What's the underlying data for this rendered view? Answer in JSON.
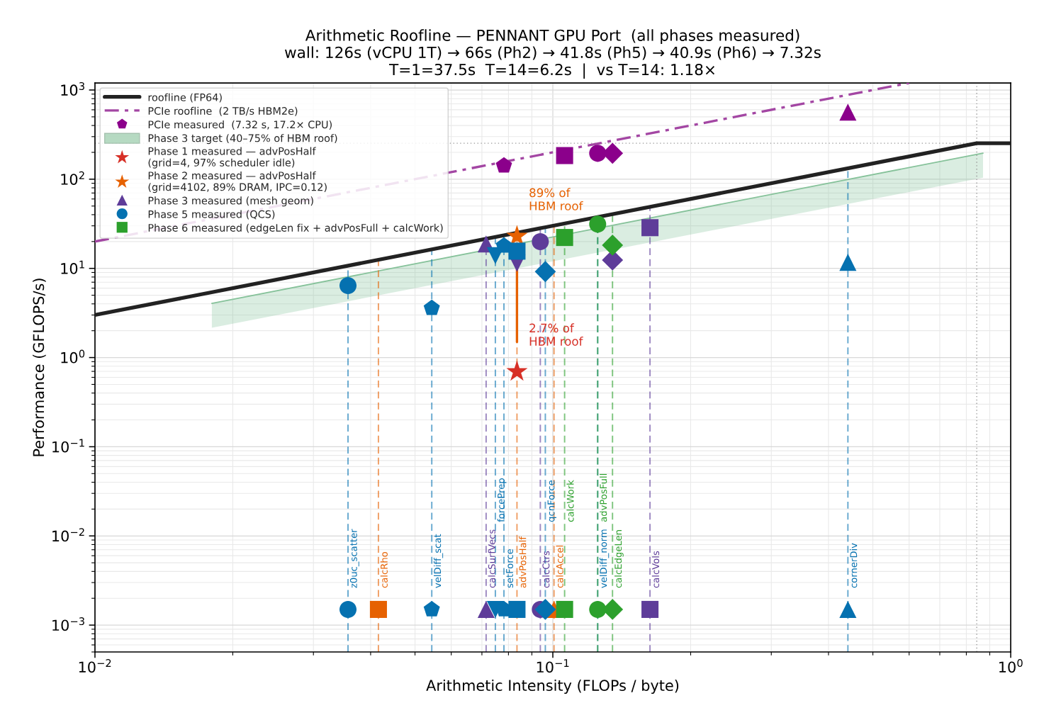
{
  "chart_data": {
    "type": "scatter",
    "title": "Arithmetic Roofline — PENNANT GPU Port  (all phases measured)",
    "subtitle": "wall: 126s (vCPU 1T) → 66s (Ph2) → 41.8s (Ph5) → 40.9s (Ph6) → 7.32s\nT=1=37.5s  T=14=6.2s  |  vs T=14: 1.18×",
    "xlabel": "Arithmetic Intensity (FLOPs / byte)",
    "ylabel": "Performance (GFLOPS/s)",
    "log": "xy",
    "grid": true,
    "legend": "top left",
    "xlim": [
      0.01,
      1
    ],
    "ylim": [
      0.0005,
      1200
    ],
    "xticks": [
      {
        "value": 0.01,
        "label": "10$^{−2}$"
      },
      {
        "value": 0.1,
        "label": "10$^{−1}$"
      },
      {
        "value": 1,
        "label": "10$^{0}$"
      }
    ],
    "yticks": [
      {
        "value": 0.001,
        "label": "10$^{−3}$"
      },
      {
        "value": 0.01,
        "label": "10$^{−2}$"
      },
      {
        "value": 0.1,
        "label": "10$^{−1}$"
      },
      {
        "value": 1,
        "label": "10$^{0}$"
      },
      {
        "value": 10,
        "label": "10$^{1}$"
      },
      {
        "value": 100,
        "label": "10$^{2}$"
      },
      {
        "value": 1000,
        "label": "10$^{3}$"
      }
    ],
    "series": [
      {
        "name": "roofline (FP64)",
        "type": "line",
        "color": "#222222",
        "x": [
          0.01,
          0.843,
          1
        ],
        "values": [
          3,
          253,
          253
        ]
      },
      {
        "name": "PCIe roofline  (2 TB/s HBM2e)",
        "type": "line",
        "line_style": "dashdot",
        "color": "#a346a3",
        "x": [
          0.01,
          0.6
        ],
        "values": [
          20,
          1200
        ]
      },
      {
        "name": "PCIe measured  (7.32 s, 17.2× CPU)",
        "color": "#8b008b",
        "x": [
          0.0782
        ],
        "values": [
          142
        ]
      },
      {
        "marker": "square",
        "color": "#8b008b",
        "x": [
          0.1061
        ],
        "values": [
          184
        ]
      },
      {
        "marker": "circle",
        "color": "#8b008b",
        "x": [
          0.1253
        ],
        "values": [
          195
        ]
      },
      {
        "marker": "diamond",
        "color": "#8b008b",
        "x": [
          0.135
        ],
        "values": [
          195
        ]
      },
      {
        "marker": "triangle",
        "color": "#8b008b",
        "x": [
          0.441
        ],
        "values": [
          564
        ]
      },
      {
        "name": "Phase 3 target (40–75% of HBM roof)",
        "type": "line",
        "color": "#86c29a",
        "x": [
          0.018,
          0.87
        ],
        "values": [
          4.05,
          196
        ],
        "lower": [
          2.16,
          104
        ],
        "upper": [
          4.05,
          196
        ]
      },
      {
        "name": "Phase 1 measured — advPosHalf\n(grid=4, 97% scheduler idle)",
        "marker": "star",
        "color": "#d73027",
        "x": [
          0.0835
        ],
        "values": [
          0.695
        ]
      },
      {
        "name": "Phase 2 measured — advPosHalf\n(grid=4102, 89% DRAM, IPC=0.12)",
        "marker": "star",
        "color": "#e66101",
        "x": [
          0.0835
        ],
        "values": [
          22.9
        ]
      },
      {
        "marker": "square",
        "color": "#e66101",
        "x": [
          0.0416
        ],
        "values": [
          0.0015
        ]
      },
      {
        "marker": "triangle",
        "color": "#e66101",
        "x": [
          0.1006
        ],
        "values": [
          0.0015
        ]
      },
      {
        "type": "line",
        "color": "#e66101",
        "x": [
          0.0835,
          0.0835
        ],
        "values": [
          1.5,
          18.5
        ]
      },
      {
        "name": "Phase 3 measured (mesh geom)",
        "marker": "triangle",
        "color": "#5e3c99",
        "x": [
          0.0715,
          0.0715
        ],
        "values": [
          18.8,
          0.0015
        ]
      },
      {
        "marker": "triangle-down",
        "color": "#5e3c99",
        "x": [
          0.0835
        ],
        "values": [
          11.4
        ]
      },
      {
        "marker": "circle",
        "color": "#5e3c99",
        "x": [
          0.0939,
          0.0939
        ],
        "values": [
          19.9,
          0.0015
        ]
      },
      {
        "marker": "diamond",
        "color": "#5e3c99",
        "x": [
          0.135
        ],
        "values": [
          12.4
        ]
      },
      {
        "marker": "square",
        "color": "#5e3c99",
        "x": [
          0.163,
          0.163
        ],
        "values": [
          28.6,
          0.0015
        ]
      },
      {
        "name": "Phase 5 measured (QCS)",
        "marker": "circle",
        "color": "#0571b0",
        "x": [
          0.0357,
          0.0357
        ],
        "values": [
          6.42,
          0.0015
        ]
      },
      {
        "color": "#0571b0",
        "x": [
          0.0544,
          0.0544
        ],
        "values": [
          3.58,
          0.0015
        ]
      },
      {
        "marker": "triangle-down",
        "color": "#0571b0",
        "x": [
          0.0749,
          0.0749
        ],
        "values": [
          13.9,
          0.0015
        ]
      },
      {
        "color": "#0571b0",
        "x": [
          0.0782,
          0.0782
        ],
        "values": [
          17.9,
          0.0015
        ]
      },
      {
        "marker": "square",
        "color": "#0571b0",
        "x": [
          0.0835,
          0.0835
        ],
        "values": [
          15.6,
          0.0015
        ]
      },
      {
        "marker": "diamond",
        "color": "#0571b0",
        "x": [
          0.0963,
          0.0963
        ],
        "values": [
          9.2,
          0.0015
        ]
      },
      {
        "marker": "triangle",
        "color": "#0571b0",
        "x": [
          0.441,
          0.441
        ],
        "values": [
          11.7,
          0.0015
        ]
      },
      {
        "name": "Phase 6 measured (edgeLen fix + advPosFull + calcWork)",
        "marker": "square",
        "color": "#2ca02c",
        "x": [
          0.1061,
          0.1061
        ],
        "values": [
          22.2,
          0.0015
        ]
      },
      {
        "marker": "circle",
        "color": "#2ca02c",
        "x": [
          0.1253,
          0.1253
        ],
        "values": [
          31.4,
          0.0015
        ]
      },
      {
        "marker": "diamond",
        "color": "#2ca02c",
        "x": [
          0.135,
          0.135
        ],
        "values": [
          18.2,
          0.0015
        ]
      }
    ],
    "ref_lines": [
      {
        "axis": "y",
        "value": 253,
        "color": "#999999",
        "line_style": "dotted"
      },
      {
        "axis": "x",
        "value": 0.843,
        "color": "#999999",
        "line_style": "dotted"
      },
      {
        "axis": "x",
        "value": 0.0357,
        "label": "z0uc_scatter",
        "color": "#0571b0",
        "line_style": "dashed"
      },
      {
        "axis": "x",
        "value": 0.0416,
        "label": "calcRho",
        "color": "#e66101",
        "line_style": "dashed"
      },
      {
        "axis": "x",
        "value": 0.0544,
        "label": "velDiff_scat",
        "color": "#0571b0",
        "line_style": "dashed"
      },
      {
        "axis": "x",
        "value": 0.0715,
        "label": "calcSurfVecs",
        "color": "#5e3c99",
        "line_style": "dashed"
      },
      {
        "axis": "x",
        "value": 0.0749,
        "label": "forcePrep",
        "color": "#0571b0",
        "line_style": "dashed"
      },
      {
        "axis": "x",
        "value": 0.0782,
        "label": "setForce",
        "color": "#0571b0",
        "line_style": "dashed"
      },
      {
        "axis": "x",
        "value": 0.0835,
        "label": "advPosHalf",
        "color": "#e66101",
        "line_style": "dashed"
      },
      {
        "axis": "x",
        "value": 0.0939,
        "label": "calcCtrs",
        "color": "#5e3c99",
        "line_style": "dashed"
      },
      {
        "axis": "x",
        "value": 0.0963,
        "label": "qcnForce",
        "color": "#0571b0",
        "line_style": "dashed"
      },
      {
        "axis": "x",
        "value": 0.1006,
        "label": "calcAccel",
        "color": "#e66101",
        "line_style": "dashed"
      },
      {
        "axis": "x",
        "value": 0.1061,
        "label": "calcWork",
        "color": "#2ca02c",
        "line_style": "dashed"
      },
      {
        "axis": "x",
        "value": 0.1253,
        "label": "velDiff_norm",
        "color": "#0571b0",
        "line_style": "dashed"
      },
      {
        "axis": "x",
        "value": 0.1253,
        "label": "advPosFull",
        "color": "#2ca02c",
        "line_style": "dashed"
      },
      {
        "axis": "x",
        "value": 0.135,
        "label": "calcEdgeLen",
        "color": "#2ca02c",
        "line_style": "dashed"
      },
      {
        "axis": "x",
        "value": 0.163,
        "label": "calcVols",
        "color": "#5e3c99",
        "line_style": "dashed"
      },
      {
        "axis": "x",
        "value": 0.441,
        "label": "cornerDiv",
        "color": "#0571b0",
        "line_style": "dashed"
      }
    ],
    "annotations": [
      {
        "text": "89% of\nHBM roof",
        "x": 0.0835,
        "y": 22.9
      },
      {
        "text": "2.7% of\nHBM roof",
        "x": 0.0835,
        "y": 0.695
      }
    ]
  }
}
